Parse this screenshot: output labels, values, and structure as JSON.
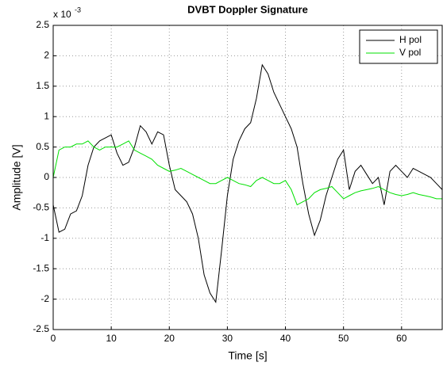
{
  "chart_data": {
    "type": "line",
    "title": "DVBT Doppler Signature",
    "x_label": "Time [s]",
    "y_label": "Amplitude [V]",
    "y_multiplier": "x 10",
    "y_multiplier_exponent": "-3",
    "x": [
      0,
      1,
      2,
      3,
      4,
      5,
      6,
      7,
      8,
      9,
      10,
      11,
      12,
      13,
      14,
      15,
      16,
      17,
      18,
      19,
      20,
      21,
      22,
      23,
      24,
      25,
      26,
      27,
      28,
      29,
      30,
      31,
      32,
      33,
      34,
      35,
      36,
      37,
      38,
      39,
      40,
      41,
      42,
      43,
      44,
      45,
      46,
      47,
      48,
      49,
      50,
      51,
      52,
      53,
      54,
      55,
      56,
      57,
      58,
      59,
      60,
      61,
      62,
      63,
      64,
      65,
      66,
      67
    ],
    "series": [
      {
        "name": "H pol",
        "color": "#000000",
        "values": [
          -0.45,
          -0.9,
          -0.85,
          -0.6,
          -0.55,
          -0.3,
          0.2,
          0.5,
          0.6,
          0.65,
          0.7,
          0.4,
          0.2,
          0.25,
          0.5,
          0.85,
          0.75,
          0.55,
          0.75,
          0.7,
          0.2,
          -0.2,
          -0.3,
          -0.4,
          -0.6,
          -1.0,
          -1.6,
          -1.9,
          -2.05,
          -1.2,
          -0.3,
          0.3,
          0.6,
          0.8,
          0.9,
          1.3,
          1.85,
          1.7,
          1.4,
          1.2,
          1.0,
          0.8,
          0.5,
          -0.1,
          -0.6,
          -0.95,
          -0.7,
          -0.3,
          0.0,
          0.3,
          0.45,
          -0.2,
          0.1,
          0.2,
          0.05,
          -0.1,
          0.0,
          -0.45,
          0.1,
          0.2,
          0.1,
          0.0,
          0.15,
          0.1,
          0.05,
          0.0,
          -0.1,
          -0.2
        ]
      },
      {
        "name": "V pol",
        "color": "#00e000",
        "values": [
          0.0,
          0.45,
          0.5,
          0.5,
          0.55,
          0.55,
          0.6,
          0.5,
          0.45,
          0.5,
          0.5,
          0.5,
          0.55,
          0.6,
          0.45,
          0.4,
          0.35,
          0.3,
          0.2,
          0.15,
          0.1,
          0.12,
          0.15,
          0.1,
          0.05,
          0.0,
          -0.05,
          -0.1,
          -0.1,
          -0.05,
          0.0,
          -0.05,
          -0.1,
          -0.12,
          -0.15,
          -0.05,
          0.0,
          -0.05,
          -0.1,
          -0.1,
          -0.05,
          -0.2,
          -0.45,
          -0.4,
          -0.35,
          -0.25,
          -0.2,
          -0.18,
          -0.15,
          -0.25,
          -0.35,
          -0.3,
          -0.25,
          -0.22,
          -0.2,
          -0.18,
          -0.15,
          -0.2,
          -0.25,
          -0.28,
          -0.3,
          -0.28,
          -0.25,
          -0.28,
          -0.3,
          -0.32,
          -0.35,
          -0.35
        ]
      }
    ],
    "xlim": [
      0,
      67
    ],
    "ylim": [
      -2.5,
      2.5
    ],
    "xticks": [
      0,
      10,
      20,
      30,
      40,
      50,
      60
    ],
    "yticks": [
      -2.5,
      -2,
      -1.5,
      -1,
      -0.5,
      0,
      0.5,
      1,
      1.5,
      2,
      2.5
    ],
    "grid": true,
    "legend": "upper right"
  }
}
